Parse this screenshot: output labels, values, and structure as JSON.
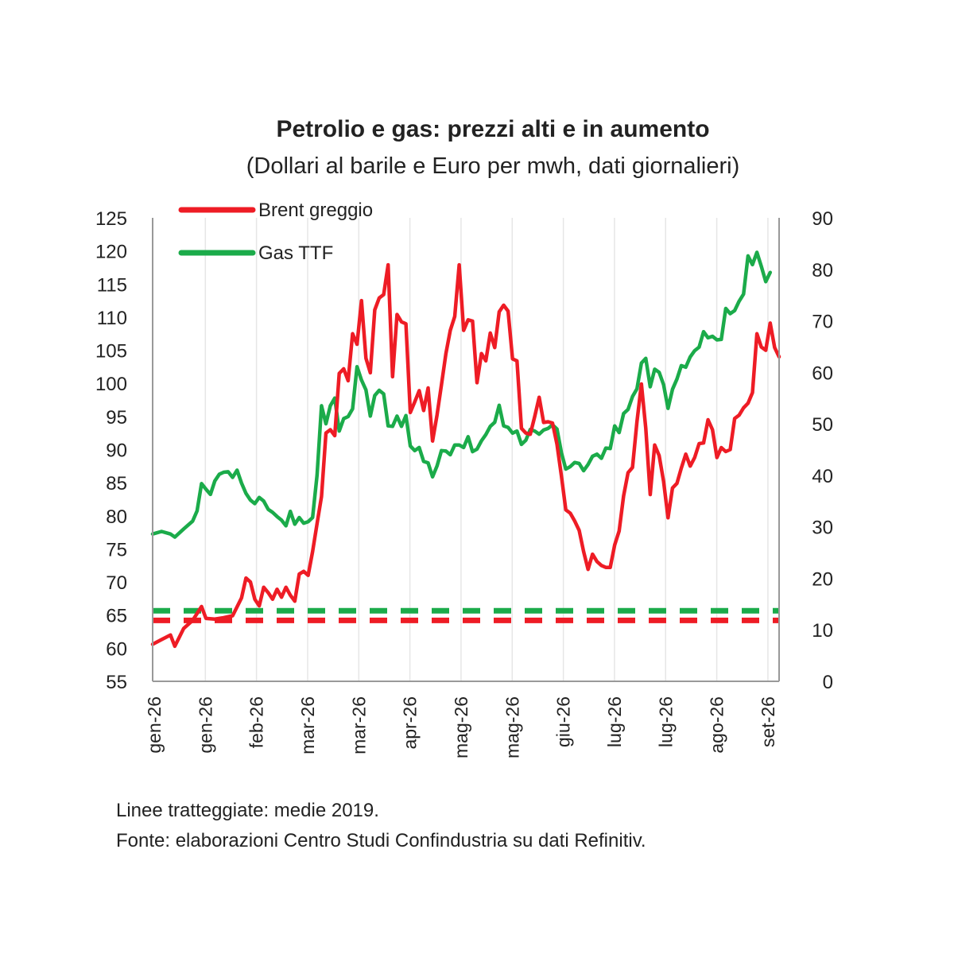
{
  "chart_data": {
    "type": "line",
    "title": "Petrolio e gas: prezzi alti e in aumento",
    "subtitle": "(Dollari al barile e Euro per mwh, dati giornalieri)",
    "x_tick_labels": [
      "gen-26",
      "gen-26",
      "feb-26",
      "mar-26",
      "mar-26",
      "apr-26",
      "mag-26",
      "mag-26",
      "giu-26",
      "lug-26",
      "lug-26",
      "ago-26",
      "set-26"
    ],
    "y_left": {
      "min": 55,
      "max": 125,
      "step": 5
    },
    "y_right": {
      "min": 0,
      "max": 90,
      "step": 10
    },
    "grid_vertical": true,
    "legend_position": "top-left",
    "series": [
      {
        "name": "Brent greggio",
        "axis": "left",
        "color": "#ee1c25",
        "values": [
          [
            0,
            60.6
          ],
          [
            2,
            61.3
          ],
          [
            4,
            62.0
          ],
          [
            5,
            60.3
          ],
          [
            7,
            63.0
          ],
          [
            9,
            64.2
          ],
          [
            11,
            66.3
          ],
          [
            12,
            64.5
          ],
          [
            14,
            64.4
          ],
          [
            16,
            64.6
          ],
          [
            18,
            64.9
          ],
          [
            20,
            67.6
          ],
          [
            21,
            70.6
          ],
          [
            22,
            70.0
          ],
          [
            23,
            67.4
          ],
          [
            24,
            66.4
          ],
          [
            25,
            69.2
          ],
          [
            26,
            68.4
          ],
          [
            27,
            67.4
          ],
          [
            28,
            68.9
          ],
          [
            29,
            67.7
          ],
          [
            30,
            69.2
          ],
          [
            31,
            68.0
          ],
          [
            32,
            67.1
          ],
          [
            33,
            71.2
          ],
          [
            34,
            71.6
          ],
          [
            35,
            71.0
          ],
          [
            36,
            74.6
          ],
          [
            37,
            78.8
          ],
          [
            38,
            82.9
          ],
          [
            39,
            92.5
          ],
          [
            40,
            93.0
          ],
          [
            41,
            92.1
          ],
          [
            42,
            101.5
          ],
          [
            43,
            102.2
          ],
          [
            44,
            100.4
          ],
          [
            45,
            107.5
          ],
          [
            46,
            105.9
          ],
          [
            47,
            112.5
          ],
          [
            48,
            103.8
          ],
          [
            49,
            101.6
          ],
          [
            50,
            111.1
          ],
          [
            51,
            112.9
          ],
          [
            52,
            113.4
          ],
          [
            53,
            117.9
          ],
          [
            54,
            101.0
          ],
          [
            55,
            110.4
          ],
          [
            56,
            109.3
          ],
          [
            57,
            109.0
          ],
          [
            58,
            95.6
          ],
          [
            59,
            97.2
          ],
          [
            60,
            98.9
          ],
          [
            61,
            95.9
          ],
          [
            62,
            99.3
          ],
          [
            63,
            91.3
          ],
          [
            64,
            95.2
          ],
          [
            65,
            99.8
          ],
          [
            66,
            104.5
          ],
          [
            67,
            108.0
          ],
          [
            68,
            110.1
          ],
          [
            69,
            117.9
          ],
          [
            70,
            108.0
          ],
          [
            71,
            109.6
          ],
          [
            72,
            109.4
          ],
          [
            73,
            100.1
          ],
          [
            74,
            104.5
          ],
          [
            75,
            103.4
          ],
          [
            76,
            107.6
          ],
          [
            77,
            105.4
          ],
          [
            78,
            110.8
          ],
          [
            79,
            111.8
          ],
          [
            80,
            110.9
          ],
          [
            81,
            103.7
          ],
          [
            82,
            103.4
          ],
          [
            83,
            93.2
          ],
          [
            84,
            92.5
          ],
          [
            85,
            92.3
          ],
          [
            86,
            95.0
          ],
          [
            87,
            97.9
          ],
          [
            88,
            94.1
          ],
          [
            89,
            94.2
          ],
          [
            90,
            94.0
          ],
          [
            91,
            90.8
          ],
          [
            92,
            86.0
          ],
          [
            93,
            80.9
          ],
          [
            94,
            80.4
          ],
          [
            95,
            79.2
          ],
          [
            96,
            77.8
          ],
          [
            97,
            74.6
          ],
          [
            98,
            71.9
          ],
          [
            99,
            74.2
          ],
          [
            100,
            73.1
          ],
          [
            101,
            72.5
          ],
          [
            102,
            72.2
          ],
          [
            103,
            72.2
          ],
          [
            104,
            75.6
          ],
          [
            105,
            77.7
          ],
          [
            106,
            83.0
          ],
          [
            107,
            86.5
          ],
          [
            108,
            87.3
          ],
          [
            109,
            94.2
          ],
          [
            110,
            99.9
          ],
          [
            111,
            93.2
          ],
          [
            112,
            83.2
          ],
          [
            113,
            90.7
          ],
          [
            114,
            89.1
          ],
          [
            115,
            85.2
          ],
          [
            116,
            79.7
          ],
          [
            117,
            84.2
          ],
          [
            118,
            84.9
          ],
          [
            119,
            87.2
          ],
          [
            120,
            89.3
          ],
          [
            121,
            87.5
          ],
          [
            122,
            88.8
          ],
          [
            123,
            90.9
          ],
          [
            124,
            91.0
          ],
          [
            125,
            94.5
          ],
          [
            126,
            93.0
          ],
          [
            127,
            88.8
          ],
          [
            128,
            90.3
          ],
          [
            129,
            89.7
          ],
          [
            130,
            90.0
          ],
          [
            131,
            94.7
          ],
          [
            132,
            95.2
          ],
          [
            133,
            96.3
          ],
          [
            134,
            97.0
          ],
          [
            135,
            98.6
          ],
          [
            136,
            107.5
          ],
          [
            137,
            105.5
          ],
          [
            138,
            105.0
          ],
          [
            139,
            109.1
          ],
          [
            140,
            105.4
          ],
          [
            141,
            104.0
          ]
        ]
      },
      {
        "name": "Gas TTF",
        "axis": "right",
        "color": "#1bab4a",
        "values": [
          [
            0,
            28.6
          ],
          [
            2,
            29.1
          ],
          [
            4,
            28.6
          ],
          [
            5,
            28.0
          ],
          [
            7,
            29.6
          ],
          [
            9,
            31.1
          ],
          [
            10,
            33.1
          ],
          [
            11,
            38.4
          ],
          [
            12,
            37.3
          ],
          [
            13,
            36.3
          ],
          [
            14,
            38.9
          ],
          [
            15,
            40.2
          ],
          [
            16,
            40.6
          ],
          [
            17,
            40.7
          ],
          [
            18,
            39.6
          ],
          [
            19,
            41.0
          ],
          [
            20,
            38.5
          ],
          [
            21,
            36.5
          ],
          [
            22,
            35.2
          ],
          [
            23,
            34.5
          ],
          [
            24,
            35.7
          ],
          [
            25,
            35.0
          ],
          [
            26,
            33.4
          ],
          [
            27,
            32.8
          ],
          [
            28,
            32.0
          ],
          [
            29,
            31.3
          ],
          [
            30,
            30.2
          ],
          [
            31,
            33.0
          ],
          [
            32,
            30.5
          ],
          [
            33,
            31.8
          ],
          [
            34,
            30.7
          ],
          [
            35,
            31.0
          ],
          [
            36,
            31.8
          ],
          [
            37,
            40.0
          ],
          [
            38,
            53.5
          ],
          [
            39,
            50.0
          ],
          [
            40,
            53.5
          ],
          [
            41,
            55.0
          ],
          [
            42,
            48.6
          ],
          [
            43,
            51.0
          ],
          [
            44,
            51.4
          ],
          [
            45,
            52.9
          ],
          [
            46,
            61.1
          ],
          [
            47,
            58.5
          ],
          [
            48,
            56.6
          ],
          [
            49,
            51.5
          ],
          [
            50,
            55.5
          ],
          [
            51,
            56.5
          ],
          [
            52,
            55.8
          ],
          [
            53,
            49.6
          ],
          [
            54,
            49.5
          ],
          [
            55,
            51.5
          ],
          [
            56,
            49.5
          ],
          [
            57,
            51.6
          ],
          [
            58,
            45.7
          ],
          [
            59,
            44.8
          ],
          [
            60,
            45.4
          ],
          [
            61,
            42.7
          ],
          [
            62,
            42.4
          ],
          [
            63,
            39.7
          ],
          [
            64,
            41.8
          ],
          [
            65,
            44.8
          ],
          [
            66,
            44.7
          ],
          [
            67,
            44.0
          ],
          [
            68,
            45.9
          ],
          [
            69,
            45.9
          ],
          [
            70,
            45.4
          ],
          [
            71,
            47.5
          ],
          [
            72,
            44.6
          ],
          [
            73,
            45.1
          ],
          [
            74,
            46.7
          ],
          [
            75,
            47.9
          ],
          [
            76,
            49.5
          ],
          [
            77,
            50.3
          ],
          [
            78,
            53.6
          ],
          [
            79,
            49.6
          ],
          [
            80,
            49.3
          ],
          [
            81,
            48.2
          ],
          [
            82,
            48.6
          ],
          [
            83,
            46.0
          ],
          [
            84,
            46.8
          ],
          [
            85,
            48.9
          ],
          [
            86,
            48.6
          ],
          [
            87,
            48.0
          ],
          [
            88,
            48.8
          ],
          [
            89,
            49.1
          ],
          [
            90,
            49.8
          ],
          [
            91,
            49.0
          ],
          [
            92,
            44.4
          ],
          [
            93,
            41.2
          ],
          [
            94,
            41.7
          ],
          [
            95,
            42.5
          ],
          [
            96,
            42.3
          ],
          [
            97,
            40.9
          ],
          [
            98,
            42.1
          ],
          [
            99,
            43.7
          ],
          [
            100,
            44.1
          ],
          [
            101,
            43.3
          ],
          [
            102,
            45.3
          ],
          [
            103,
            45.2
          ],
          [
            104,
            49.6
          ],
          [
            105,
            48.3
          ],
          [
            106,
            52.0
          ],
          [
            107,
            52.8
          ],
          [
            108,
            55.3
          ],
          [
            109,
            56.8
          ],
          [
            110,
            61.8
          ],
          [
            111,
            62.7
          ],
          [
            112,
            57.2
          ],
          [
            113,
            60.6
          ],
          [
            114,
            60.0
          ],
          [
            115,
            57.6
          ],
          [
            116,
            53.0
          ],
          [
            117,
            56.7
          ],
          [
            118,
            58.7
          ],
          [
            119,
            61.3
          ],
          [
            120,
            61.0
          ],
          [
            121,
            63.0
          ],
          [
            122,
            64.2
          ],
          [
            123,
            64.9
          ],
          [
            124,
            67.9
          ],
          [
            125,
            66.7
          ],
          [
            126,
            67.0
          ],
          [
            127,
            66.3
          ],
          [
            128,
            66.4
          ],
          [
            129,
            72.4
          ],
          [
            130,
            71.4
          ],
          [
            131,
            72.0
          ],
          [
            132,
            73.8
          ],
          [
            133,
            75.2
          ],
          [
            134,
            82.6
          ],
          [
            135,
            80.9
          ],
          [
            136,
            83.3
          ],
          [
            137,
            80.6
          ],
          [
            138,
            77.6
          ],
          [
            139,
            79.4
          ]
        ]
      }
    ],
    "reference_lines": [
      {
        "series": "Brent greggio",
        "axis": "left",
        "value": 64.2,
        "color": "#ee1c25",
        "style": "dashed"
      },
      {
        "series": "Gas TTF",
        "axis": "right",
        "value": 13.7,
        "color": "#1bab4a",
        "style": "dashed"
      }
    ]
  },
  "notes": {
    "line1": "Linee tratteggiate: medie 2019.",
    "line2": "Fonte: elaborazioni Centro Studi Confindustria su dati Refinitiv."
  }
}
